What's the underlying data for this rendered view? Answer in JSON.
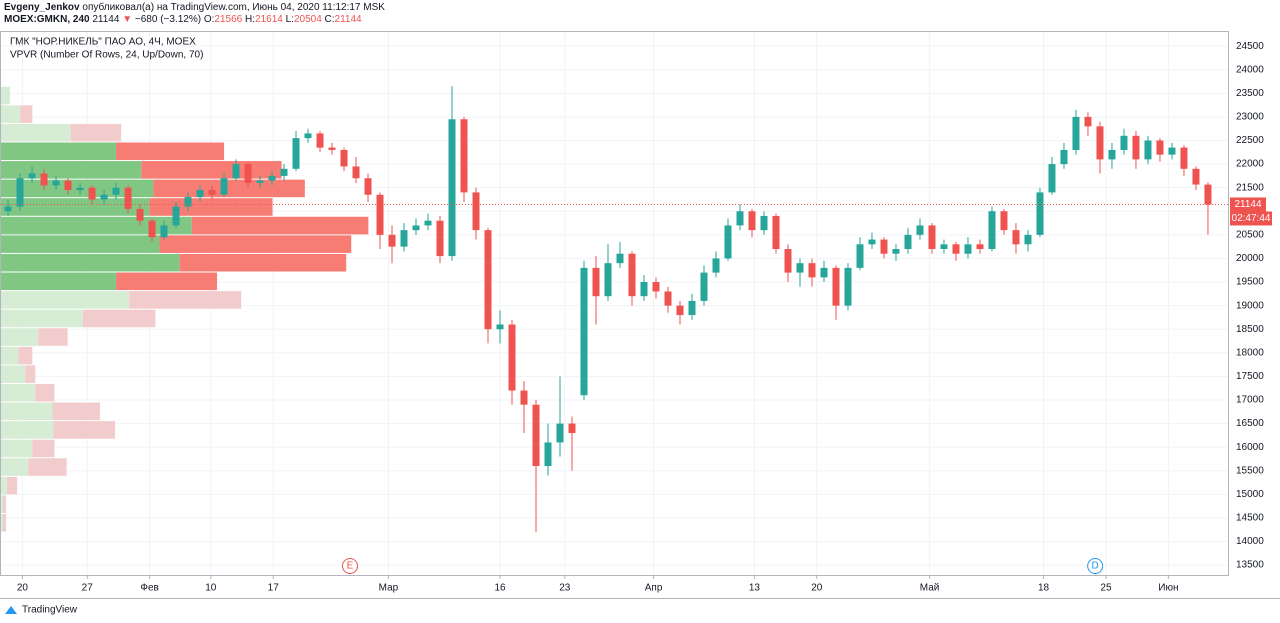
{
  "header": {
    "author": "Evgeny_Jenkov",
    "published": "опубликовал(а) на TradingView.com, Июнь 04, 2020 11:12:17 MSK",
    "symbol": "MOEX:GMKN, 240",
    "price": "21144",
    "arrow": "▼",
    "change": "−680 (−3.12%)",
    "o_label": "O:",
    "o": "21566",
    "h_label": "H:",
    "h": "21614",
    "l_label": "L:",
    "l": "20504",
    "c_label": "C:",
    "c": "21144"
  },
  "chart_data": {
    "type": "candlestick",
    "title": "ГМК \"НОР.НИКЕЛЬ\" ПАО АО, 4Ч, MOEX",
    "subtitle": "VPVR (Number Of Rows, 24, Up/Down, 70)",
    "x": [
      0,
      1,
      2,
      3,
      4,
      5,
      6,
      7,
      8,
      9,
      10,
      11,
      12,
      13,
      14,
      15,
      16,
      17,
      18,
      19,
      20,
      21,
      22,
      23,
      24,
      25,
      26,
      27,
      28,
      29,
      30,
      31,
      32,
      33,
      34,
      35,
      36,
      37,
      38,
      39,
      40,
      41,
      42,
      43,
      44,
      45,
      46,
      47,
      48,
      49,
      50,
      51,
      52,
      53,
      54,
      55,
      56,
      57,
      58,
      59,
      60,
      61,
      62,
      63,
      64,
      65,
      66,
      67,
      68,
      69,
      70,
      71,
      72,
      73,
      74,
      75,
      76,
      77,
      78,
      79,
      80,
      81,
      82,
      83,
      84,
      85,
      86,
      87,
      88,
      89,
      90,
      91,
      92,
      93,
      94,
      95,
      96,
      97,
      98,
      99,
      100
    ],
    "open": [
      21000,
      21100,
      21700,
      21800,
      21550,
      21650,
      21450,
      21500,
      21250,
      21350,
      21500,
      21050,
      20800,
      20450,
      20700,
      21100,
      21300,
      21450,
      21350,
      21700,
      22000,
      21600,
      21650,
      21750,
      21900,
      22550,
      22650,
      22350,
      22300,
      21950,
      21700,
      21350,
      20500,
      20250,
      20600,
      20700,
      20800,
      20050,
      22950,
      21400,
      20600,
      18500,
      18600,
      17200,
      16900,
      15600,
      16100,
      16500,
      17100,
      19800,
      19200,
      19900,
      20100,
      19200,
      19500,
      19300,
      19000,
      18800,
      19100,
      19700,
      20000,
      20700,
      21000,
      20600,
      20900,
      20200,
      19700,
      19900,
      19600,
      19800,
      19000,
      19800,
      20300,
      20400,
      20100,
      20200,
      20500,
      20700,
      20200,
      20300,
      20100,
      20300,
      20200,
      21000,
      20600,
      20300,
      20500,
      21400,
      22000,
      22300,
      23000,
      22800,
      22100,
      22300,
      22600,
      22100,
      22500,
      22200,
      22350,
      21900,
      21566
    ],
    "high": [
      21250,
      21800,
      21950,
      21900,
      21750,
      21700,
      21600,
      21550,
      21450,
      21600,
      21550,
      21150,
      20850,
      20800,
      21200,
      21400,
      21550,
      21550,
      21800,
      22100,
      22050,
      21750,
      21850,
      22000,
      22700,
      22750,
      22700,
      22450,
      22350,
      22150,
      21800,
      21400,
      20700,
      20750,
      20850,
      20950,
      20900,
      23650,
      23000,
      21500,
      20650,
      18900,
      18700,
      17400,
      17000,
      16500,
      17500,
      16650,
      19950,
      20050,
      20300,
      20350,
      20150,
      19650,
      19600,
      19400,
      19100,
      19250,
      19850,
      20150,
      20850,
      21150,
      21050,
      21000,
      20950,
      20300,
      20000,
      20000,
      19950,
      19850,
      19900,
      20450,
      20550,
      20450,
      20300,
      20650,
      20850,
      20750,
      20400,
      20350,
      20450,
      20400,
      21100,
      21050,
      20750,
      20600,
      21500,
      22150,
      22450,
      23150,
      23100,
      22900,
      22450,
      22750,
      22700,
      22600,
      22550,
      22450,
      22400,
      21950,
      21614
    ],
    "low": [
      20900,
      21000,
      21600,
      21450,
      21450,
      21350,
      21350,
      21150,
      21150,
      21250,
      20950,
      20700,
      20350,
      20400,
      20650,
      21000,
      21200,
      21250,
      21300,
      21650,
      21500,
      21500,
      21550,
      21650,
      21850,
      22450,
      22250,
      22200,
      21850,
      21600,
      21200,
      20200,
      19900,
      20150,
      20500,
      20600,
      19900,
      19950,
      21200,
      20400,
      18200,
      18200,
      16900,
      16300,
      14200,
      15400,
      15800,
      15500,
      17000,
      18600,
      19100,
      19800,
      19000,
      19100,
      19150,
      18850,
      18600,
      18700,
      19000,
      19600,
      19950,
      20600,
      20450,
      20500,
      20100,
      19500,
      19400,
      19400,
      19500,
      18700,
      18900,
      19750,
      20200,
      20000,
      19950,
      20100,
      20400,
      20100,
      20100,
      19950,
      20000,
      20100,
      20150,
      20500,
      20100,
      20150,
      20450,
      21350,
      21900,
      22200,
      22600,
      21800,
      21900,
      22200,
      21900,
      22000,
      22050,
      22100,
      21750,
      21450,
      20504
    ],
    "close": [
      21100,
      21700,
      21800,
      21550,
      21650,
      21450,
      21500,
      21250,
      21350,
      21500,
      21050,
      20800,
      20450,
      20700,
      21100,
      21300,
      21450,
      21350,
      21700,
      22000,
      21600,
      21650,
      21750,
      21900,
      22550,
      22650,
      22350,
      22300,
      21950,
      21700,
      21350,
      20500,
      20250,
      20600,
      20700,
      20800,
      20050,
      22950,
      21400,
      20600,
      18500,
      18600,
      17200,
      16900,
      15600,
      16100,
      16500,
      16300,
      19800,
      19200,
      19900,
      20100,
      19200,
      19500,
      19300,
      19000,
      18800,
      19100,
      19700,
      20000,
      20700,
      21000,
      20600,
      20900,
      20200,
      19700,
      19900,
      19600,
      19800,
      19000,
      19800,
      20300,
      20400,
      20100,
      20200,
      20500,
      20700,
      20200,
      20300,
      20100,
      20300,
      20200,
      21000,
      20600,
      20300,
      20500,
      21400,
      22000,
      22300,
      23000,
      22800,
      22100,
      22300,
      22600,
      22100,
      22500,
      22200,
      22350,
      21900,
      21566,
      21144
    ],
    "up_color": "#26a69a",
    "down_color": "#ef5350",
    "xlim": [
      -0.67,
      101.67
    ],
    "xticks": [
      {
        "value": 1.2,
        "label": "20"
      },
      {
        "value": 6.6,
        "label": "27"
      },
      {
        "value": 11.8,
        "label": "Фев"
      },
      {
        "value": 16.9,
        "label": "10"
      },
      {
        "value": 22.1,
        "label": "17"
      },
      {
        "value": 31.7,
        "label": "Мар"
      },
      {
        "value": 41,
        "label": "16"
      },
      {
        "value": 46.4,
        "label": "23"
      },
      {
        "value": 53.8,
        "label": "Апр"
      },
      {
        "value": 62.2,
        "label": "13"
      },
      {
        "value": 67.4,
        "label": "20"
      },
      {
        "value": 76.8,
        "label": "Май"
      },
      {
        "value": 86.3,
        "label": "18"
      },
      {
        "value": 91.5,
        "label": "25"
      },
      {
        "value": 96.7,
        "label": "Июн"
      }
    ],
    "ylim": [
      13290,
      24800
    ],
    "yticks": [
      13500,
      14000,
      14500,
      15000,
      15500,
      16000,
      16500,
      17000,
      17500,
      18000,
      18500,
      19000,
      19500,
      20000,
      20500,
      21000,
      21500,
      22000,
      22500,
      23000,
      23500,
      24000,
      24500
    ],
    "grid": true,
    "last_price": 21144,
    "countdown": "02:47:44",
    "events": [
      {
        "x": 28.5,
        "label": "E",
        "color": "#ef5350"
      },
      {
        "x": 90.6,
        "label": "D",
        "color": "#2196f3"
      }
    ],
    "volume_profile": {
      "up": [
        10,
        20,
        70,
        115,
        140,
        152,
        148,
        190,
        158,
        178,
        115,
        128,
        82,
        38,
        18,
        25,
        35,
        52,
        53,
        32,
        28,
        7,
        3,
        3
      ],
      "down": [
        0,
        12,
        50,
        107,
        139,
        150,
        122,
        175,
        190,
        165,
        100,
        111,
        72,
        29,
        14,
        10,
        19,
        47,
        61,
        22,
        38,
        10,
        3,
        3
      ],
      "value_area_rows": [
        3,
        10
      ],
      "up_color": "#81c784",
      "down_color": "#f77c74",
      "up_faded": "#d6ecd4",
      "down_faded": "#f2cccc"
    }
  },
  "footer": {
    "brand": "TradingView"
  }
}
